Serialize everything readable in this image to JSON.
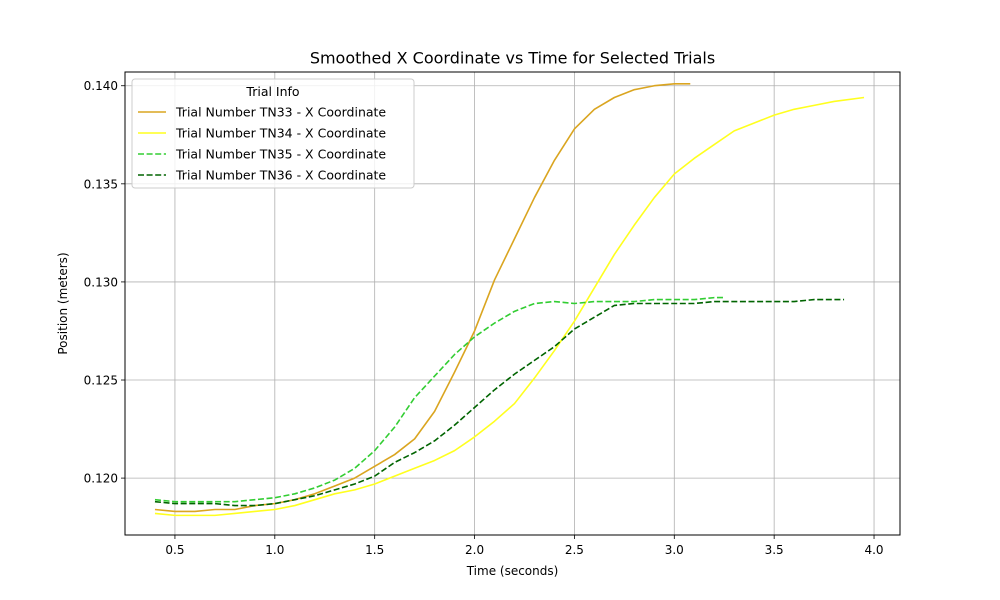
{
  "chart_data": {
    "type": "line",
    "title": "Smoothed X Coordinate vs Time for Selected Trials",
    "xlabel": "Time (seconds)",
    "ylabel": "Position (meters)",
    "xlim": [
      0.25,
      4.13
    ],
    "ylim": [
      0.1171,
      0.1407
    ],
    "xticks": [
      0.5,
      1.0,
      1.5,
      2.0,
      2.5,
      3.0,
      3.5,
      4.0
    ],
    "xtick_labels": [
      "0.5",
      "1.0",
      "1.5",
      "2.0",
      "2.5",
      "3.0",
      "3.5",
      "4.0"
    ],
    "yticks": [
      0.12,
      0.125,
      0.13,
      0.135,
      0.14
    ],
    "ytick_labels": [
      "0.120",
      "0.125",
      "0.130",
      "0.135",
      "0.140"
    ],
    "grid": true,
    "legend": {
      "title": "Trial Info",
      "placement": "top-left"
    },
    "series": [
      {
        "name": "Trial Number TN33 - X Coordinate",
        "color": "#DAA520",
        "dash": "solid",
        "x": [
          0.4,
          0.5,
          0.6,
          0.7,
          0.8,
          0.9,
          1.0,
          1.1,
          1.2,
          1.3,
          1.4,
          1.5,
          1.6,
          1.7,
          1.8,
          1.9,
          2.0,
          2.1,
          2.2,
          2.3,
          2.4,
          2.5,
          2.6,
          2.7,
          2.8,
          2.9,
          3.0,
          3.08
        ],
        "y": [
          0.1184,
          0.1183,
          0.1183,
          0.1184,
          0.1184,
          0.1186,
          0.1187,
          0.1189,
          0.1192,
          0.1196,
          0.12,
          0.1206,
          0.1212,
          0.122,
          0.1234,
          0.1254,
          0.1275,
          0.1301,
          0.1322,
          0.1343,
          0.1362,
          0.1378,
          0.1388,
          0.1394,
          0.1398,
          0.14,
          0.1401,
          0.1401
        ]
      },
      {
        "name": "Trial Number TN34 - X Coordinate",
        "color": "#FFFF1F",
        "dash": "solid",
        "x": [
          0.4,
          0.5,
          0.6,
          0.7,
          0.8,
          0.9,
          1.0,
          1.1,
          1.2,
          1.3,
          1.4,
          1.5,
          1.6,
          1.7,
          1.8,
          1.9,
          2.0,
          2.1,
          2.2,
          2.3,
          2.4,
          2.5,
          2.6,
          2.7,
          2.8,
          2.9,
          3.0,
          3.1,
          3.2,
          3.3,
          3.4,
          3.5,
          3.6,
          3.7,
          3.8,
          3.95
        ],
        "y": [
          0.1182,
          0.1181,
          0.1181,
          0.1181,
          0.1182,
          0.1183,
          0.1184,
          0.1186,
          0.1189,
          0.1192,
          0.1194,
          0.1197,
          0.1201,
          0.1205,
          0.1209,
          0.1214,
          0.1221,
          0.1229,
          0.1238,
          0.1251,
          0.1265,
          0.128,
          0.1297,
          0.1314,
          0.1329,
          0.1343,
          0.1355,
          0.1363,
          0.137,
          0.1377,
          0.1381,
          0.1385,
          0.1388,
          0.139,
          0.1392,
          0.1394
        ]
      },
      {
        "name": "Trial Number TN35 - X Coordinate",
        "color": "#32CD32",
        "dash": "dashed",
        "x": [
          0.4,
          0.5,
          0.6,
          0.7,
          0.8,
          0.9,
          1.0,
          1.1,
          1.2,
          1.3,
          1.4,
          1.5,
          1.6,
          1.7,
          1.8,
          1.9,
          2.0,
          2.1,
          2.2,
          2.3,
          2.4,
          2.5,
          2.6,
          2.7,
          2.8,
          2.9,
          3.0,
          3.1,
          3.2,
          3.25
        ],
        "y": [
          0.1189,
          0.1188,
          0.1188,
          0.1188,
          0.1188,
          0.1189,
          0.119,
          0.1192,
          0.1195,
          0.1199,
          0.1205,
          0.1214,
          0.1226,
          0.1241,
          0.1252,
          0.1263,
          0.1272,
          0.1279,
          0.1285,
          0.1289,
          0.129,
          0.1289,
          0.129,
          0.129,
          0.129,
          0.1291,
          0.1291,
          0.1291,
          0.1292,
          0.1292
        ]
      },
      {
        "name": "Trial Number TN36 - X Coordinate",
        "color": "#006400",
        "dash": "dashed",
        "x": [
          0.4,
          0.5,
          0.6,
          0.7,
          0.8,
          0.9,
          1.0,
          1.1,
          1.2,
          1.3,
          1.4,
          1.5,
          1.6,
          1.7,
          1.8,
          1.9,
          2.0,
          2.1,
          2.2,
          2.3,
          2.4,
          2.5,
          2.6,
          2.7,
          2.8,
          2.9,
          3.0,
          3.1,
          3.2,
          3.3,
          3.4,
          3.5,
          3.6,
          3.7,
          3.85
        ],
        "y": [
          0.1188,
          0.1187,
          0.1187,
          0.1187,
          0.1186,
          0.1186,
          0.1187,
          0.1189,
          0.1191,
          0.1194,
          0.1197,
          0.1201,
          0.1208,
          0.1213,
          0.1219,
          0.1227,
          0.1236,
          0.1245,
          0.1253,
          0.126,
          0.1267,
          0.1276,
          0.1282,
          0.1288,
          0.1289,
          0.1289,
          0.1289,
          0.1289,
          0.129,
          0.129,
          0.129,
          0.129,
          0.129,
          0.1291,
          0.1291
        ]
      }
    ]
  }
}
